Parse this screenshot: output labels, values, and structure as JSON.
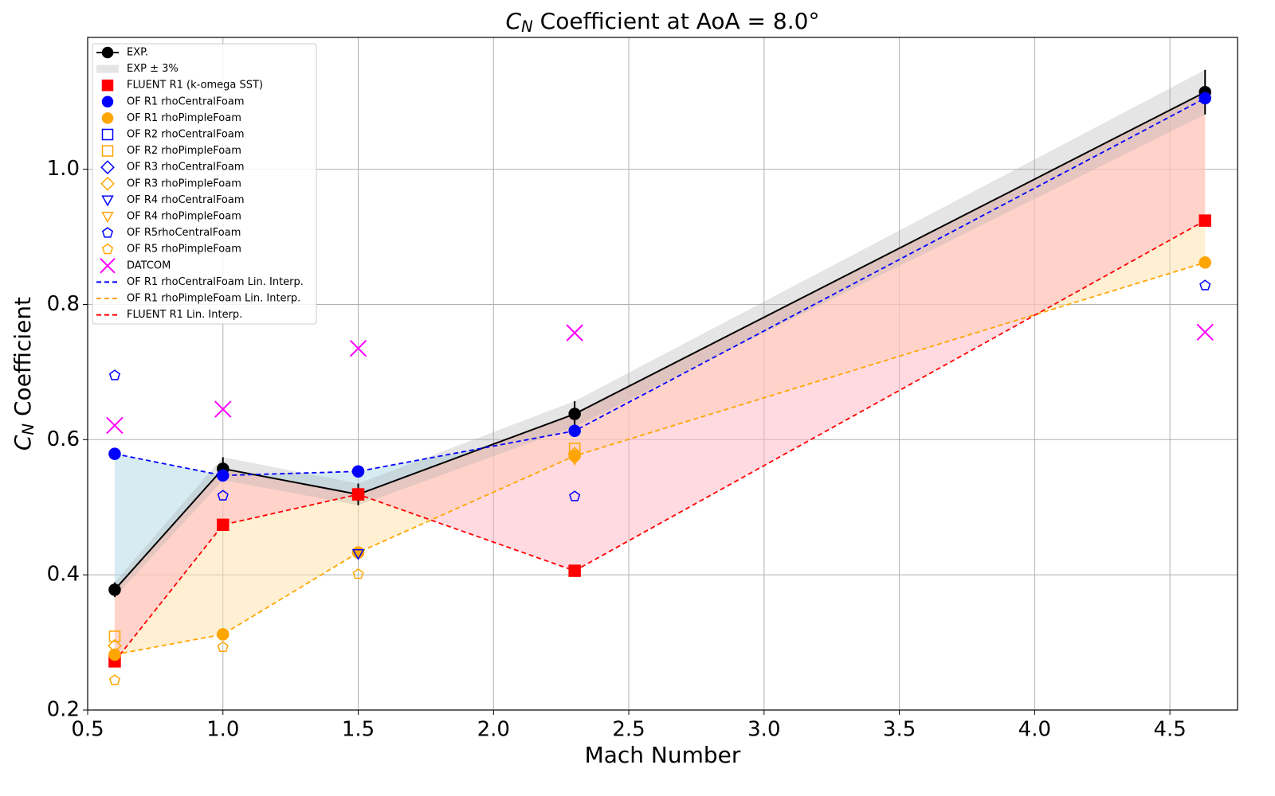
{
  "chart_data": {
    "type": "line",
    "title": {
      "main": "C",
      "sub": "N",
      "rest": " Coefficient at AoA = 8.0°"
    },
    "xlabel": "Mach Number",
    "ylabel": {
      "main": "C",
      "sub": "N",
      "rest": " Coefficient"
    },
    "x": [
      0.6,
      1.0,
      1.5,
      2.3,
      4.63
    ],
    "xlim": [
      0.5,
      4.75
    ],
    "ylim": [
      0.2,
      1.195
    ],
    "xticks": [
      0.5,
      {
        "value": 1,
        "label": "1.0"
      },
      1.5,
      {
        "value": 2,
        "label": "2.0"
      },
      2.5,
      {
        "value": 3,
        "label": "3.0"
      },
      3.5,
      {
        "value": 4,
        "label": "4.0"
      },
      4.5
    ],
    "yticks": [
      0.2,
      0.4,
      0.6,
      0.8,
      {
        "value": 1,
        "label": "1.0"
      }
    ],
    "grid": true,
    "legend": "upper left",
    "series": [
      {
        "name": "EXP.",
        "color": "#000000",
        "marker": "circle",
        "filled": true,
        "line": "solid",
        "values": [
          0.378,
          0.557,
          0.519,
          0.638,
          1.114
        ],
        "errors": [
          0.011,
          0.017,
          0.016,
          0.019,
          0.033
        ]
      },
      {
        "name": "EXP ± 3%",
        "color": "#aaaaaa",
        "band_of": 0
      },
      {
        "name": "FLUENT R1 (k-omega SST)",
        "color": "#ff0000",
        "marker": "square",
        "filled": true,
        "values": [
          0.272,
          0.474,
          0.519,
          0.406,
          0.924
        ]
      },
      {
        "name": "OF R1 rhoCentralFoam",
        "color": "#0000ff",
        "marker": "circle",
        "filled": true,
        "values": [
          0.579,
          0.547,
          0.553,
          0.613,
          1.105
        ]
      },
      {
        "name": "OF R1 rhoPimpleFoam",
        "color": "#ffa500",
        "marker": "circle",
        "filled": true,
        "values": [
          0.282,
          0.312,
          0.433,
          0.576,
          0.862
        ]
      },
      {
        "name": "OF R2 rhoCentralFoam",
        "color": "#0000ff",
        "marker": "square",
        "filled": false,
        "values": [
          null,
          null,
          null,
          null,
          null
        ]
      },
      {
        "name": "OF R2 rhoPimpleFoam",
        "color": "#ffa500",
        "marker": "square",
        "filled": false,
        "values": [
          0.309,
          null,
          null,
          0.587,
          null
        ]
      },
      {
        "name": "OF R3 rhoCentralFoam",
        "color": "#0000ff",
        "marker": "diamond",
        "filled": false,
        "values": [
          null,
          null,
          null,
          null,
          null
        ]
      },
      {
        "name": "OF R3 rhoPimpleFoam",
        "color": "#ffa500",
        "marker": "diamond",
        "filled": false,
        "values": [
          0.295,
          null,
          null,
          0.579,
          null
        ]
      },
      {
        "name": "OF R4 rhoCentralFoam",
        "color": "#0000ff",
        "marker": "triangle",
        "filled": false,
        "values": [
          null,
          null,
          0.431,
          null,
          null
        ]
      },
      {
        "name": "OF R4 rhoPimpleFoam",
        "color": "#ffa500",
        "marker": "triangle",
        "filled": false,
        "values": [
          null,
          null,
          null,
          0.571,
          null
        ]
      },
      {
        "name": "OF R5rhoCentralFoam",
        "color": "#0000ff",
        "marker": "pentagon",
        "filled": false,
        "values": [
          0.695,
          0.517,
          null,
          0.516,
          0.828
        ]
      },
      {
        "name": "OF R5 rhoPimpleFoam",
        "color": "#ffa500",
        "marker": "pentagon",
        "filled": false,
        "values": [
          0.244,
          0.293,
          0.401,
          null,
          null
        ]
      },
      {
        "name": "DATCOM",
        "color": "#ff00ff",
        "marker": "x",
        "filled": false,
        "values": [
          0.621,
          0.645,
          0.735,
          0.758,
          0.759
        ]
      },
      {
        "name": "OF R1 rhoCentralFoam Lin. Interp.",
        "color": "#0000ff",
        "line": "dashed",
        "fill_color": "#add8e6",
        "values": [
          0.579,
          0.547,
          0.553,
          0.613,
          1.105
        ]
      },
      {
        "name": "OF R1 rhoPimpleFoam Lin. Interp.",
        "color": "#ffa500",
        "line": "dashed",
        "fill_color": "#ffe2a8",
        "values": [
          0.282,
          0.312,
          0.433,
          0.576,
          0.862
        ]
      },
      {
        "name": "FLUENT R1 Lin. Interp.",
        "color": "#ff0000",
        "line": "dashed",
        "fill_color": "#ffb6c1",
        "values": [
          0.272,
          0.474,
          0.519,
          0.406,
          0.924
        ]
      }
    ]
  }
}
